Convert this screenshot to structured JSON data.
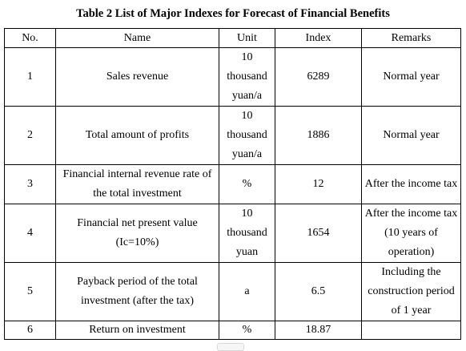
{
  "title": "Table 2 List of Major Indexes for Forecast of Financial Benefits",
  "headers": {
    "no": "No.",
    "name": "Name",
    "unit": "Unit",
    "index": "Index",
    "remarks": "Remarks"
  },
  "rows": [
    {
      "no": "1",
      "name": "Sales revenue",
      "unit": "10 thousand yuan/a",
      "index": "6289",
      "remarks": "Normal year"
    },
    {
      "no": "2",
      "name": "Total amount of profits",
      "unit": "10 thousand yuan/a",
      "index": "1886",
      "remarks": "Normal year"
    },
    {
      "no": "3",
      "name": "Financial internal revenue rate of the total investment",
      "unit": "%",
      "index": "12",
      "remarks": "After the income tax"
    },
    {
      "no": "4",
      "name": "Financial net present value (Ic=10%)",
      "unit": "10 thousand yuan",
      "index": "1654",
      "remarks": "After the income tax (10 years of operation)"
    },
    {
      "no": "5",
      "name": "Payback period of the total investment (after the tax)",
      "unit": "a",
      "index": "6.5",
      "remarks": "Including the construction period of 1 year"
    },
    {
      "no": "6",
      "name": "Return on investment",
      "unit": "%",
      "index": "18.87",
      "remarks": ""
    }
  ]
}
